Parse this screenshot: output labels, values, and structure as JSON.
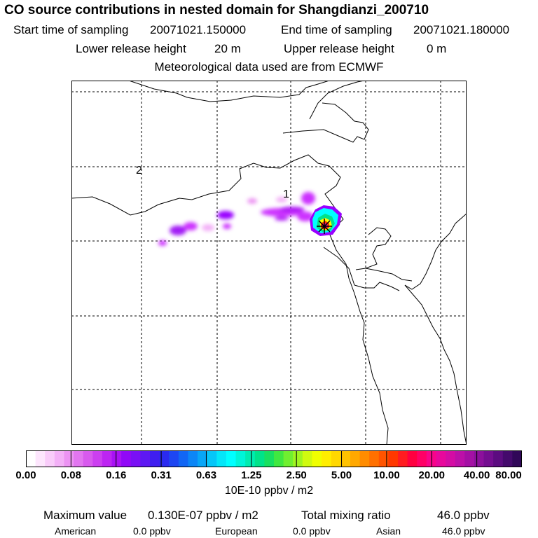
{
  "header": {
    "title": "CO  source contributions in nested domain for Shangdianzi_200710",
    "start_label": "Start time of sampling",
    "start_value": "20071021.150000",
    "end_label": "End time of sampling",
    "end_value": "20071021.180000",
    "lower_label": "Lower release height",
    "lower_value": "20 m",
    "upper_label": "Upper release height",
    "upper_value": "0 m",
    "met_line": "Meteorological data used are from ECMWF"
  },
  "map": {
    "markers": [
      "1",
      "2"
    ],
    "receptor_symbol": "star",
    "plume_colors": [
      "#cc33ff",
      "#9900ff",
      "#00ffff",
      "#66ff66",
      "#ffff00",
      "#ff6600",
      "#ff0066"
    ]
  },
  "colorbar": {
    "tick_labels": [
      "0.00",
      "0.08",
      "0.16",
      "0.31",
      "0.63",
      "1.25",
      "2.50",
      "5.00",
      "10.00",
      "20.00",
      "40.00",
      "80.00"
    ],
    "units": "10E-10 ppbv / m2",
    "colors": [
      "#ffffff",
      "#fde6fd",
      "#f9ccfa",
      "#f3b0f7",
      "#ec93f3",
      "#e276f0",
      "#d85aee",
      "#cc3ff0",
      "#bd25f2",
      "#a912f5",
      "#9108f7",
      "#7a10f5",
      "#5e18f3",
      "#3f1ef0",
      "#2a2af0",
      "#1d46f2",
      "#1266f4",
      "#0c86f6",
      "#08a6f7",
      "#06c6f8",
      "#04e6f9",
      "#00ffff",
      "#00f5d8",
      "#00ecb0",
      "#00e38a",
      "#18e060",
      "#40e840",
      "#70ef30",
      "#a0f520",
      "#d0fa10",
      "#f0ff00",
      "#ffee00",
      "#ffd800",
      "#ffc200",
      "#ffa800",
      "#ff8c00",
      "#ff7000",
      "#ff5400",
      "#ff3800",
      "#ff1c20",
      "#ff0040",
      "#ff0066",
      "#f8048a",
      "#e8089c",
      "#d40ca4",
      "#bc10a8",
      "#a410a4",
      "#8c109c",
      "#740e90",
      "#5c0c80",
      "#440a6c",
      "#300858"
    ]
  },
  "stats": {
    "max_label": "Maximum value",
    "max_value": "0.130E-07 ppbv / m2",
    "total_label": "Total mixing ratio",
    "total_value": "46.0 ppbv",
    "american_label": "American",
    "american_value": "0.0 ppbv",
    "european_label": "European",
    "european_value": "0.0 ppbv",
    "asian_label": "Asian",
    "asian_value": "46.0 ppbv"
  }
}
